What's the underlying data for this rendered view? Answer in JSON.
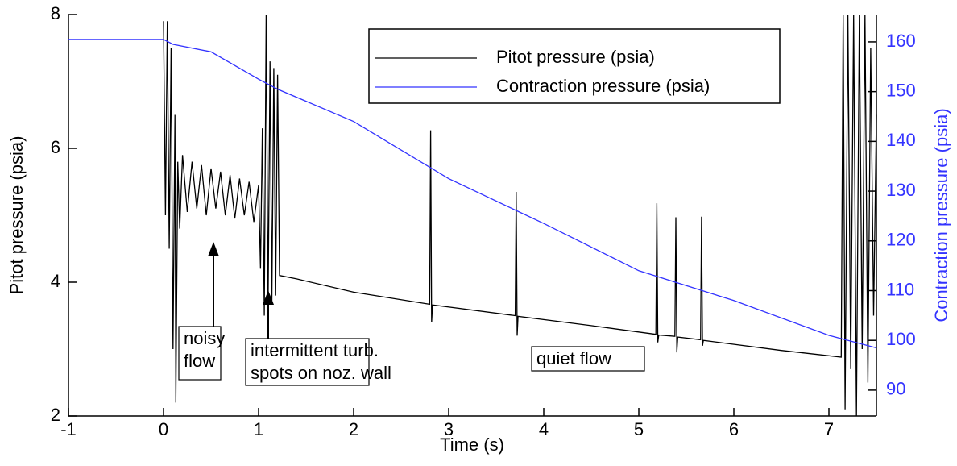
{
  "chart_data": {
    "type": "line",
    "x_label": "Time (s)",
    "y_label": "Pitot pressure (psia)",
    "y2_label": "Contraction pressure (psia)",
    "xlim": [
      -1,
      7.5
    ],
    "xticks": [
      -1,
      0,
      1,
      2,
      3,
      4,
      5,
      6,
      7
    ],
    "ylim": [
      2,
      8
    ],
    "yticks": [
      2,
      4,
      6,
      8
    ],
    "y2lim": [
      84.8,
      165.5
    ],
    "y2ticks": [
      90,
      100,
      110,
      120,
      130,
      140,
      150,
      160
    ],
    "y2color": "#3333ff",
    "series": [
      {
        "name": "Pitot pressure (psia)",
        "color": "#000000",
        "x": [
          0,
          0.02,
          0.04,
          0.06,
          0.08,
          0.1,
          0.12,
          0.13,
          0.15,
          0.17,
          0.2,
          0.25,
          0.3,
          0.35,
          0.4,
          0.45,
          0.5,
          0.55,
          0.6,
          0.65,
          0.7,
          0.75,
          0.8,
          0.85,
          0.9,
          0.95,
          1.0,
          1.02,
          1.04,
          1.06,
          1.08,
          1.1,
          1.12,
          1.14,
          1.16,
          1.18,
          1.2,
          1.22,
          1.4,
          2.0,
          2.8,
          2.81,
          2.82,
          2.83,
          3.7,
          3.71,
          3.72,
          3.73,
          4.5,
          5.18,
          5.19,
          5.2,
          5.21,
          5.38,
          5.39,
          5.4,
          5.41,
          5.65,
          5.66,
          5.67,
          5.68,
          6.5,
          7.13,
          7.15,
          7.17,
          7.2,
          7.23,
          7.26,
          7.29,
          7.32,
          7.35,
          7.38,
          7.41,
          7.44,
          7.47,
          7.5
        ],
        "values": [
          7.9,
          5.0,
          7.9,
          4.5,
          7.5,
          3.0,
          6.5,
          2.2,
          5.8,
          4.8,
          5.9,
          5.05,
          5.8,
          5.1,
          5.75,
          5.0,
          5.7,
          5.1,
          5.65,
          5.0,
          5.6,
          4.95,
          5.55,
          5.0,
          5.5,
          4.9,
          5.45,
          4.2,
          6.3,
          3.5,
          8.0,
          3.6,
          7.3,
          3.7,
          7.2,
          3.8,
          7.1,
          4.1,
          4.05,
          3.85,
          3.67,
          6.27,
          3.4,
          3.66,
          3.5,
          5.35,
          3.2,
          3.49,
          3.35,
          3.22,
          5.18,
          3.1,
          3.21,
          3.19,
          4.97,
          2.95,
          3.18,
          3.14,
          4.98,
          3.05,
          3.13,
          2.98,
          2.88,
          8,
          2.1,
          8,
          2.7,
          8,
          2.0,
          8,
          3.0,
          8,
          2.5,
          7.5,
          3.5,
          6.5
        ]
      },
      {
        "name": "Contraction pressure (psia)",
        "color": "#3333ff",
        "axis": "y2",
        "x": [
          -1,
          0,
          0.1,
          0.5,
          1,
          1.2,
          2,
          3,
          4,
          5,
          6,
          7,
          7.5
        ],
        "values": [
          160.5,
          160.5,
          159.5,
          158,
          152.5,
          150.5,
          144,
          132.5,
          123.5,
          114,
          108,
          101,
          98.5
        ]
      }
    ],
    "annotations": [
      [
        "noisy",
        "flow"
      ],
      [
        "intermittent turb.",
        "spots on noz. wall"
      ],
      [
        "quiet flow"
      ]
    ]
  }
}
